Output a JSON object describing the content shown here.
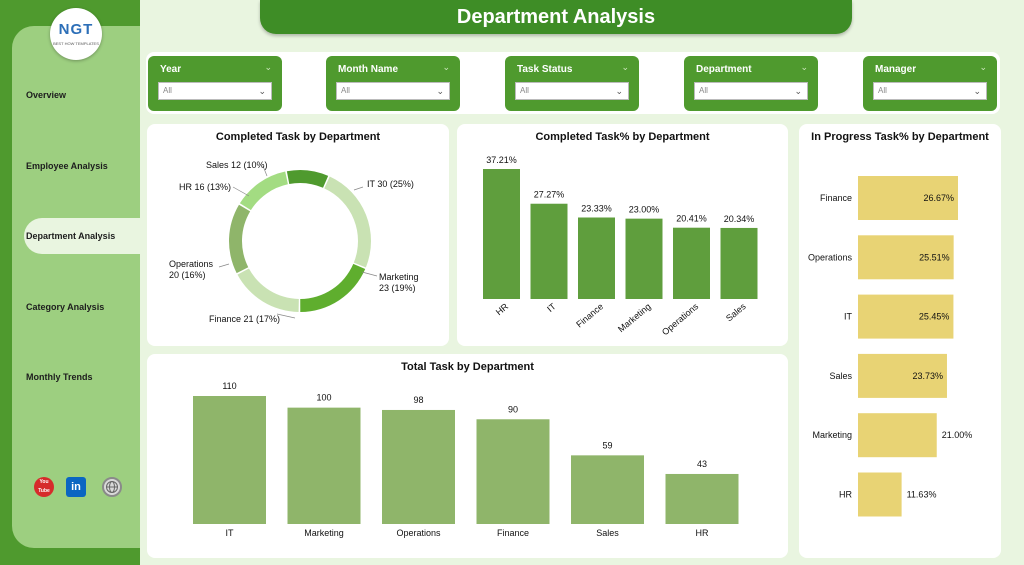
{
  "header": {
    "title": "Department Analysis"
  },
  "logo": {
    "text": "NGT",
    "subtitle": "BEST HOW TEMPLATES"
  },
  "sidebar": {
    "items": [
      {
        "label": "Overview"
      },
      {
        "label": "Employee Analysis"
      },
      {
        "label": "Department Analysis",
        "active": true
      },
      {
        "label": "Category Analysis"
      },
      {
        "label": "Monthly Trends"
      }
    ],
    "social": [
      {
        "icon": "youtube-icon",
        "label": "You Tube",
        "color": "#d62b2b"
      },
      {
        "icon": "linkedin-icon",
        "label": "in",
        "color": "#0a66c2"
      },
      {
        "icon": "website-icon",
        "label": "",
        "color": "#8a8a8a"
      }
    ]
  },
  "filters": [
    {
      "label": "Year",
      "value": "All"
    },
    {
      "label": "Month Name",
      "value": "All"
    },
    {
      "label": "Task Status",
      "value": "All"
    },
    {
      "label": "Department",
      "value": "All"
    },
    {
      "label": "Manager",
      "value": "All"
    }
  ],
  "colors": {
    "dark_green": "#4f9a2e",
    "light_green": "#9dcf80",
    "background": "#e9f5e0",
    "bar_green": "#5f9e3d",
    "bar_olive": "#8fb56a",
    "bar_yellow": "#e8d374"
  },
  "chart_data": [
    {
      "type": "pie",
      "title": "Completed Task by Department",
      "categories": [
        "IT",
        "Marketing",
        "Finance",
        "Operations",
        "HR",
        "Sales"
      ],
      "values": [
        30,
        23,
        21,
        20,
        16,
        12
      ],
      "labels": [
        "IT 30 (25%)",
        "Marketing 23 (19%)",
        "Finance 21 (17%)",
        "Operations 20 (16%)",
        "HR 16 (13%)",
        "Sales 12 (10%)"
      ],
      "colors": [
        "#c9e2b3",
        "#5fae2e",
        "#c9e2b3",
        "#8fb56a",
        "#a3dc82",
        "#4f9a2e"
      ]
    },
    {
      "type": "bar",
      "title": "Completed Task% by Department",
      "categories": [
        "HR",
        "IT",
        "Finance",
        "Marketing",
        "Operations",
        "Sales"
      ],
      "values": [
        37.21,
        27.27,
        23.33,
        23.0,
        20.41,
        20.34
      ],
      "value_labels": [
        "37.21%",
        "27.27%",
        "23.33%",
        "23.00%",
        "20.41%",
        "20.34%"
      ]
    },
    {
      "type": "bar",
      "orientation": "horizontal",
      "title": "In Progress Task% by Department",
      "categories": [
        "Finance",
        "Operations",
        "IT",
        "Sales",
        "Marketing",
        "HR"
      ],
      "values": [
        26.67,
        25.51,
        25.45,
        23.73,
        21.0,
        11.63
      ],
      "value_labels": [
        "26.67%",
        "25.51%",
        "25.45%",
        "23.73%",
        "21.00%",
        "11.63%"
      ]
    },
    {
      "type": "bar",
      "title": "Total Task by Department",
      "categories": [
        "IT",
        "Marketing",
        "Operations",
        "Finance",
        "Sales",
        "HR"
      ],
      "values": [
        110,
        100,
        98,
        90,
        59,
        43
      ],
      "value_labels": [
        "110",
        "100",
        "98",
        "90",
        "59",
        "43"
      ]
    }
  ]
}
